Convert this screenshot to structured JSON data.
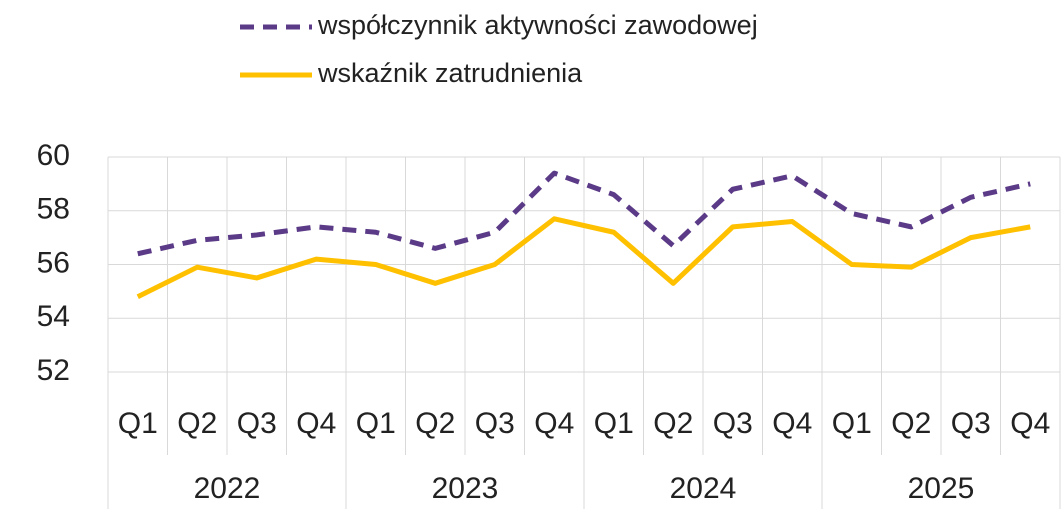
{
  "chart_data": {
    "type": "line",
    "categories": [
      "Q1",
      "Q2",
      "Q3",
      "Q4",
      "Q1",
      "Q2",
      "Q3",
      "Q4",
      "Q1",
      "Q2",
      "Q3",
      "Q4",
      "Q1",
      "Q2",
      "Q3",
      "Q4"
    ],
    "x_groups": [
      "2022",
      "2023",
      "2024",
      "2025"
    ],
    "series": [
      {
        "name": "współczynnik aktywności zawodowej",
        "color": "#5b3a87",
        "dash": true,
        "values": [
          56.4,
          56.9,
          57.1,
          57.4,
          57.2,
          56.6,
          57.2,
          59.4,
          58.6,
          56.7,
          58.8,
          59.3,
          57.9,
          57.4,
          58.5,
          59.0
        ]
      },
      {
        "name": "wskaźnik zatrudnienia",
        "color": "#ffc000",
        "dash": false,
        "values": [
          54.8,
          55.9,
          55.5,
          56.2,
          56.0,
          55.3,
          56.0,
          57.7,
          57.2,
          55.3,
          57.4,
          57.6,
          56.0,
          55.9,
          57.0,
          57.4
        ]
      }
    ],
    "ylim": [
      52,
      60
    ],
    "yticks": [
      52,
      54,
      56,
      58,
      60
    ],
    "grid": true,
    "legend": "top"
  }
}
